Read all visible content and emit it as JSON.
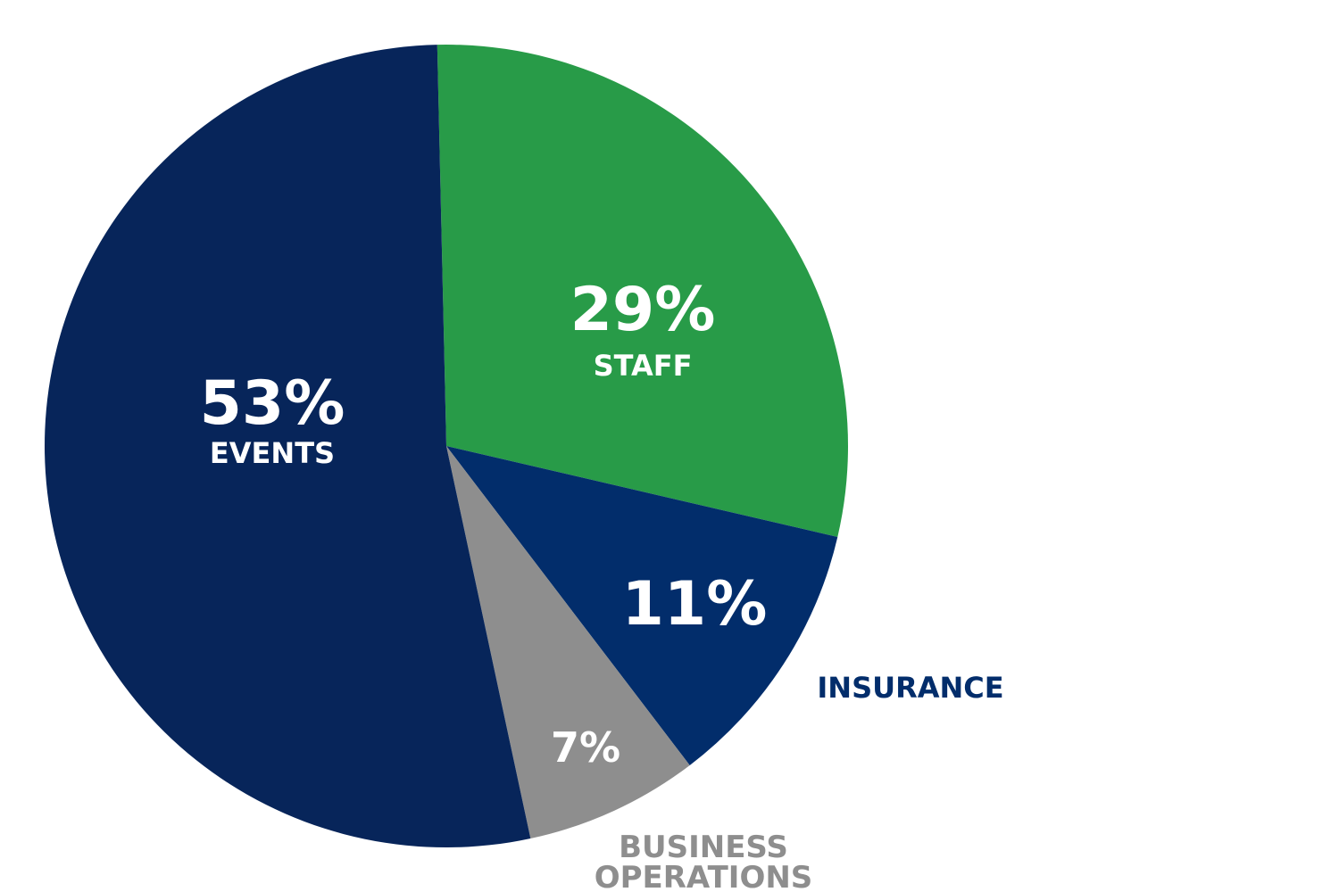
{
  "chart_data": {
    "type": "pie",
    "categories": [
      "STAFF",
      "INSURANCE",
      "BUSINESS OPERATIONS",
      "EVENTS"
    ],
    "values": [
      29,
      11,
      7,
      53
    ],
    "value_labels": [
      "29%",
      "11%",
      "7%",
      "53%"
    ],
    "colors": [
      "#289b48",
      "#022d6b",
      "#8e8e8e",
      "#07255a"
    ]
  }
}
